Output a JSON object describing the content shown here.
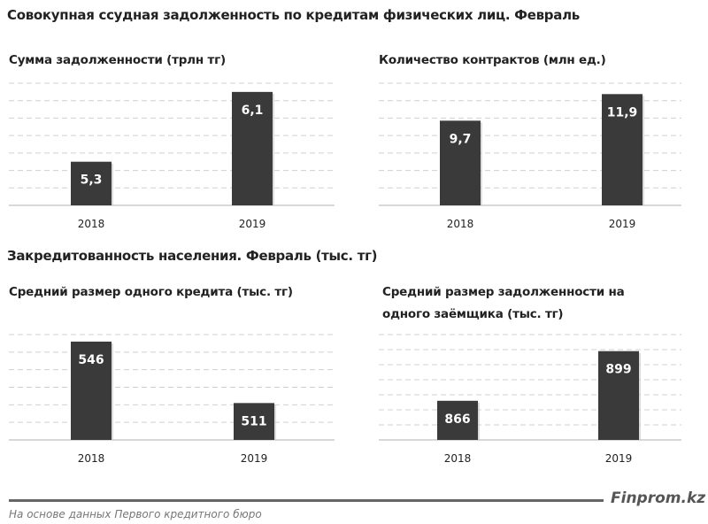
{
  "section1_title": "Совокупная ссудная задолженность по кредитам физических лиц. Февраль",
  "section2_title": "Закредитованность населения. Февраль (тыс. тг)",
  "source": "На основе данных Первого кредитного бюро",
  "brand": "Finprom.kz",
  "colors": {
    "bar": "#3a3a3a",
    "grid": "#d0d0d0",
    "bar_label": "#ffffff"
  },
  "chart_data": [
    {
      "type": "bar",
      "title": "Сумма задолженности (трлн тг)",
      "categories": [
        "2018",
        "2019"
      ],
      "values": [
        5.3,
        6.1
      ],
      "labels": [
        "5,3",
        "6,1"
      ],
      "ylim": [
        4.8,
        6.2
      ],
      "grid": true,
      "gridlines": 8
    },
    {
      "type": "bar",
      "title": "Количество контрактов (млн ед.)",
      "categories": [
        "2018",
        "2019"
      ],
      "values": [
        9.7,
        11.9
      ],
      "labels": [
        "9,7",
        "11,9"
      ],
      "ylim": [
        2.7,
        12.8
      ],
      "grid": true,
      "gridlines": 8
    },
    {
      "type": "bar",
      "title": "Средний размер одного кредита (тыс. тг)",
      "categories": [
        "2018",
        "2019"
      ],
      "values": [
        546,
        511
      ],
      "labels": [
        "546",
        "511"
      ],
      "ylim": [
        490,
        550
      ],
      "grid": true,
      "gridlines": 7
    },
    {
      "type": "bar",
      "title": "Средний размер задолженности на одного заёмщика (тыс. тг)",
      "title_lines": [
        "Средний размер задолженности на",
        "одного заёмщика (тыс. тг)"
      ],
      "categories": [
        "2018",
        "2019"
      ],
      "values": [
        866,
        899
      ],
      "labels": [
        "866",
        "899"
      ],
      "ylim": [
        840,
        910
      ],
      "grid": true,
      "gridlines": 8
    }
  ]
}
